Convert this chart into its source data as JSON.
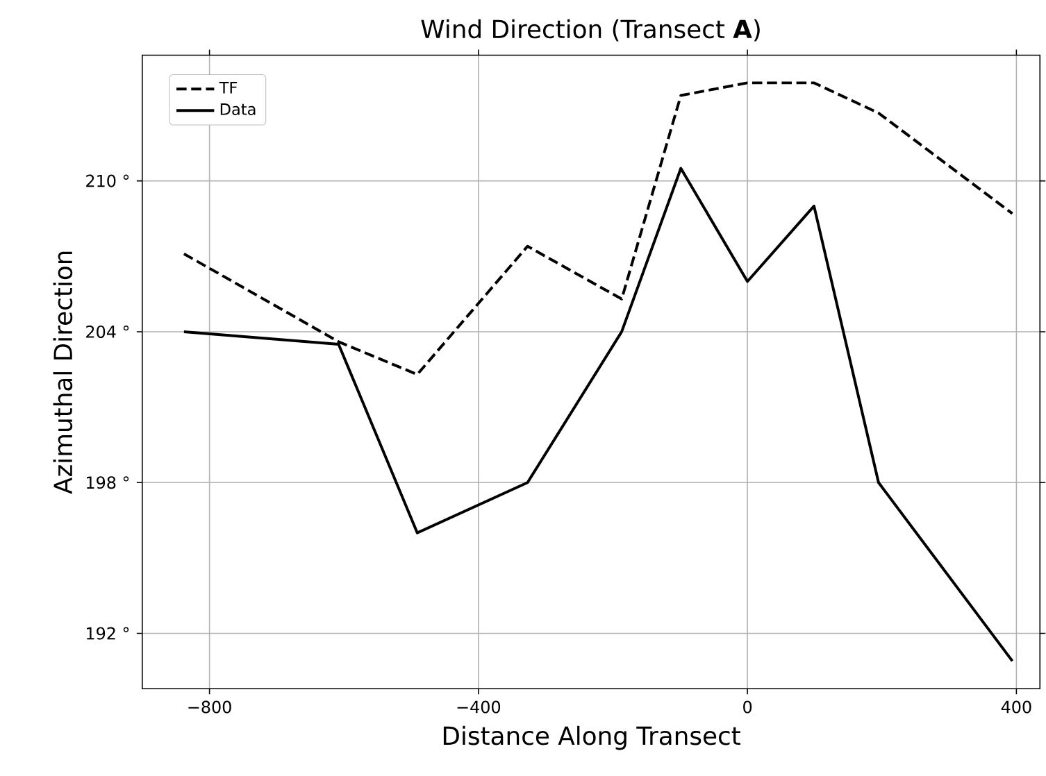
{
  "chart_data": {
    "type": "line",
    "title": "Wind Direction (Transect **A**)",
    "xlabel": "Distance Along Transect",
    "ylabel": "Azimuthal Direction",
    "x": [
      -838,
      -608,
      -491,
      -327,
      -187,
      -99,
      0,
      99,
      195,
      394
    ],
    "series": [
      {
        "name": "TF",
        "color": "#000000",
        "line_style": "dashed",
        "values": [
          207.1,
          203.6,
          202.3,
          207.4,
          205.3,
          213.4,
          213.9,
          213.9,
          212.7,
          208.7
        ]
      },
      {
        "name": "Data",
        "color": "#000000",
        "line_style": "solid",
        "values": [
          204.0,
          203.5,
          196.0,
          198.0,
          204.0,
          210.5,
          206.0,
          209.0,
          198.0,
          190.9
        ]
      }
    ],
    "xlim": [
      -900,
      435
    ],
    "ylim": [
      189.8,
      215.0
    ],
    "xticks": [
      {
        "value": -800,
        "label": "−800"
      },
      {
        "value": -400,
        "label": "−400"
      },
      0,
      400
    ],
    "yticks": [
      {
        "value": 192,
        "label": "192 °"
      },
      {
        "value": 198,
        "label": "198 °"
      },
      {
        "value": 204,
        "label": "204 °"
      },
      {
        "value": 210,
        "label": "210 °"
      }
    ],
    "grid": true,
    "legend": "top left",
    "marker": "none"
  }
}
